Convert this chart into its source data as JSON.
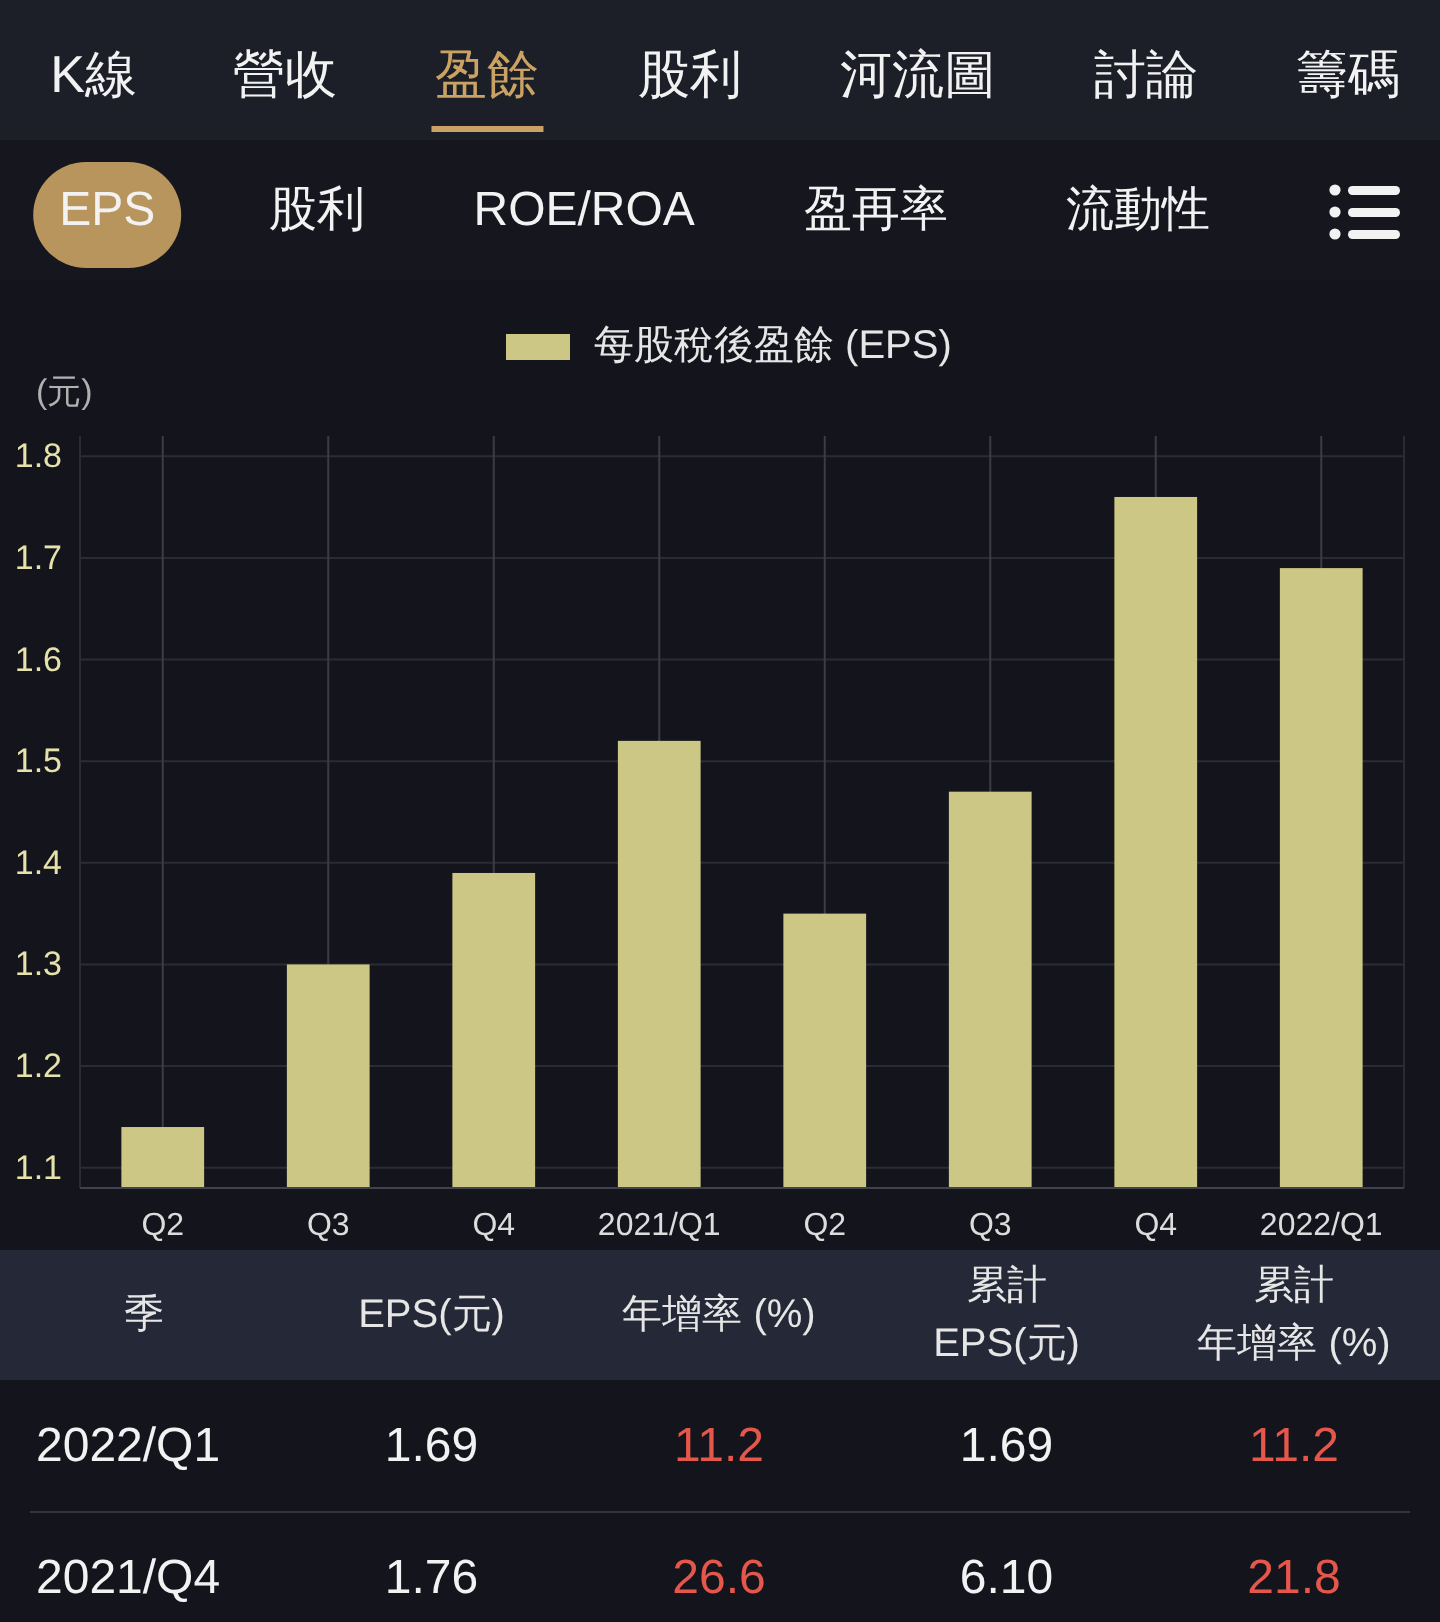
{
  "chart_data": [
    {
      "type": "other",
      "categories": [
        "K線",
        "營收",
        "盈餘",
        "股利",
        "河流圖",
        "討論",
        "籌碼"
      ],
      "colors": [
        null,
        null,
        "#c9a264",
        null,
        null,
        null,
        null
      ]
    },
    {
      "type": "other",
      "categories": [
        "EPS",
        "股利",
        "ROE/ROA",
        "盈再率",
        "流動性"
      ],
      "colors": [
        "#b8955c",
        null,
        null,
        null,
        null
      ]
    },
    {
      "type": "bar",
      "categories": [
        "Q2",
        "Q3",
        "Q4",
        "2021/Q1",
        "Q2",
        "Q3",
        "Q4",
        "2022/Q1"
      ],
      "series": [
        {
          "name": "每股稅後盈餘 (EPS)",
          "color": "#cdc785",
          "values": [
            1.14,
            1.3,
            1.39,
            1.52,
            1.35,
            1.47,
            1.76,
            1.69
          ]
        }
      ],
      "ylabel": "(元)",
      "ylim": [
        1.08,
        1.82
      ],
      "yticks": [
        1.1,
        1.2,
        1.3,
        1.4,
        1.5,
        1.6,
        1.7,
        1.8
      ],
      "grid": true,
      "legend": "top"
    },
    {
      "type": "other",
      "ylabel": "季",
      "categories": [
        "EPS(元)",
        "年增率 (%)",
        "累計\nEPS(元)",
        "累計年增率 (%)"
      ],
      "y_categories": [
        "2022/Q1",
        "2021/Q4"
      ],
      "cell_labels": [
        [
          "1.69",
          "11.2",
          "1.69",
          "11.2"
        ],
        [
          "1.76",
          "26.6",
          "6.10",
          "21.8"
        ]
      ],
      "colors": [
        null,
        "#e5574b",
        null,
        "#e5574b"
      ]
    }
  ]
}
